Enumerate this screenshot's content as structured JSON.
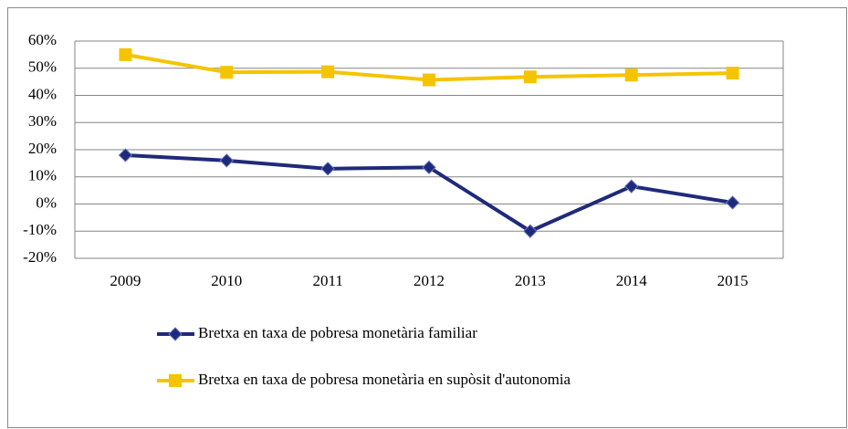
{
  "chart_data": {
    "type": "line",
    "categories": [
      "2009",
      "2010",
      "2011",
      "2012",
      "2013",
      "2014",
      "2015"
    ],
    "series": [
      {
        "name": "Bretxa en taxa de pobresa monetària familiar",
        "color": "#1f2a7a",
        "marker": "diamond",
        "values": [
          18,
          16,
          13,
          13.5,
          -10,
          6.5,
          0.5
        ]
      },
      {
        "name": "Bretxa en taxa de pobresa monetària en supòsit d'autonomia",
        "color": "#f5c400",
        "marker": "square",
        "values": [
          55,
          48.5,
          48.7,
          45.7,
          46.8,
          47.5,
          48.2
        ]
      }
    ],
    "ylim": [
      -20,
      60
    ],
    "yticks": [
      {
        "value": -20,
        "label": "-20%"
      },
      {
        "value": -10,
        "label": "-10%"
      },
      {
        "value": 0,
        "label": "0%"
      },
      {
        "value": 10,
        "label": "10%"
      },
      {
        "value": 20,
        "label": "20%"
      },
      {
        "value": 30,
        "label": "30%"
      },
      {
        "value": 40,
        "label": "40%"
      },
      {
        "value": 50,
        "label": "50%"
      },
      {
        "value": 60,
        "label": "60%"
      }
    ],
    "grid": true,
    "legend": "bottom"
  }
}
